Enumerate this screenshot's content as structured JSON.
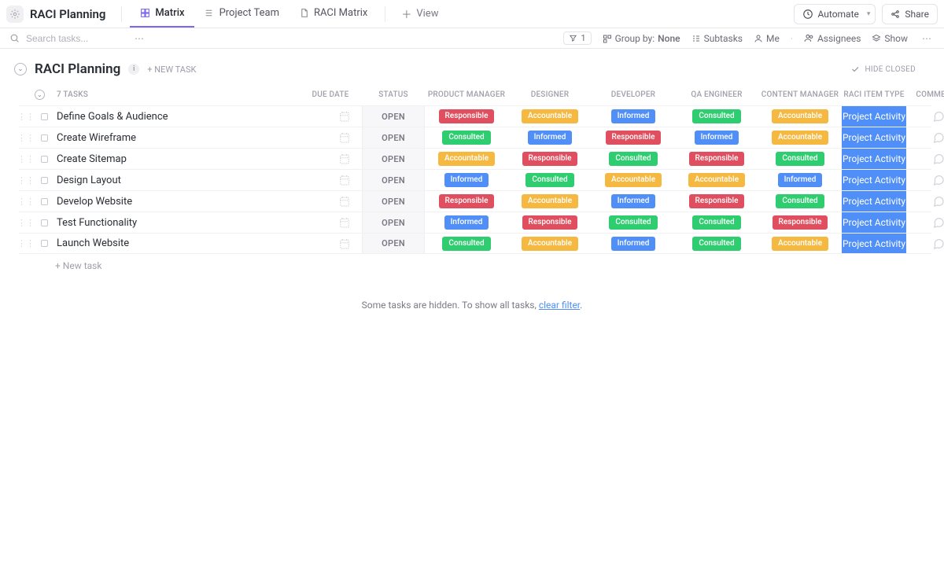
{
  "header": {
    "space_title": "RACI Planning",
    "tabs": [
      {
        "label": "Matrix",
        "icon": "matrix-icon",
        "active": true
      },
      {
        "label": "Project Team",
        "icon": "list-icon",
        "active": false
      },
      {
        "label": "RACI Matrix",
        "icon": "doc-icon",
        "active": false
      }
    ],
    "add_view_label": "View",
    "automate_label": "Automate",
    "share_label": "Share"
  },
  "toolbar": {
    "search_placeholder": "Search tasks...",
    "filter_count": "1",
    "group_by_label": "Group by:",
    "group_by_value": "None",
    "subtasks_label": "Subtasks",
    "me_label": "Me",
    "assignees_label": "Assignees",
    "show_label": "Show"
  },
  "section": {
    "title": "RACI Planning",
    "new_task_label": "+ NEW TASK",
    "hide_closed_label": "HIDE CLOSED"
  },
  "columns": {
    "tasks_count": "7 TASKS",
    "due_date": "DUE DATE",
    "status": "STATUS",
    "roles": [
      "PRODUCT MANAGER",
      "DESIGNER",
      "DEVELOPER",
      "QA ENGINEER",
      "CONTENT MANAGER"
    ],
    "raci_type": "RACI ITEM TYPE",
    "comments": "COMMENTS"
  },
  "raci_colors": {
    "Responsible": "#e04f5f",
    "Accountable": "#f5b942",
    "Consulted": "#2ecd6f",
    "Informed": "#4f8ff7"
  },
  "status_open": "OPEN",
  "raci_item_type_value": "Project Activity",
  "raci_cell_bg": "#4f8ff7",
  "rows": [
    {
      "name": "Define Goals & Audience",
      "cells": [
        "Responsible",
        "Accountable",
        "Informed",
        "Consulted",
        "Accountable"
      ]
    },
    {
      "name": "Create Wireframe",
      "cells": [
        "Consulted",
        "Informed",
        "Responsible",
        "Informed",
        "Accountable"
      ]
    },
    {
      "name": "Create Sitemap",
      "cells": [
        "Accountable",
        "Responsible",
        "Consulted",
        "Responsible",
        "Consulted"
      ]
    },
    {
      "name": "Design Layout",
      "cells": [
        "Informed",
        "Consulted",
        "Accountable",
        "Accountable",
        "Informed"
      ]
    },
    {
      "name": "Develop Website",
      "cells": [
        "Responsible",
        "Accountable",
        "Informed",
        "Responsible",
        "Consulted"
      ]
    },
    {
      "name": "Test Functionality",
      "cells": [
        "Informed",
        "Responsible",
        "Consulted",
        "Consulted",
        "Responsible"
      ]
    },
    {
      "name": "Launch Website",
      "cells": [
        "Consulted",
        "Accountable",
        "Informed",
        "Consulted",
        "Accountable"
      ]
    }
  ],
  "footer_new_task": "+ New task",
  "hidden_note_prefix": "Some tasks are hidden. To show all tasks, ",
  "hidden_note_link": "clear filter",
  "hidden_note_suffix": "."
}
